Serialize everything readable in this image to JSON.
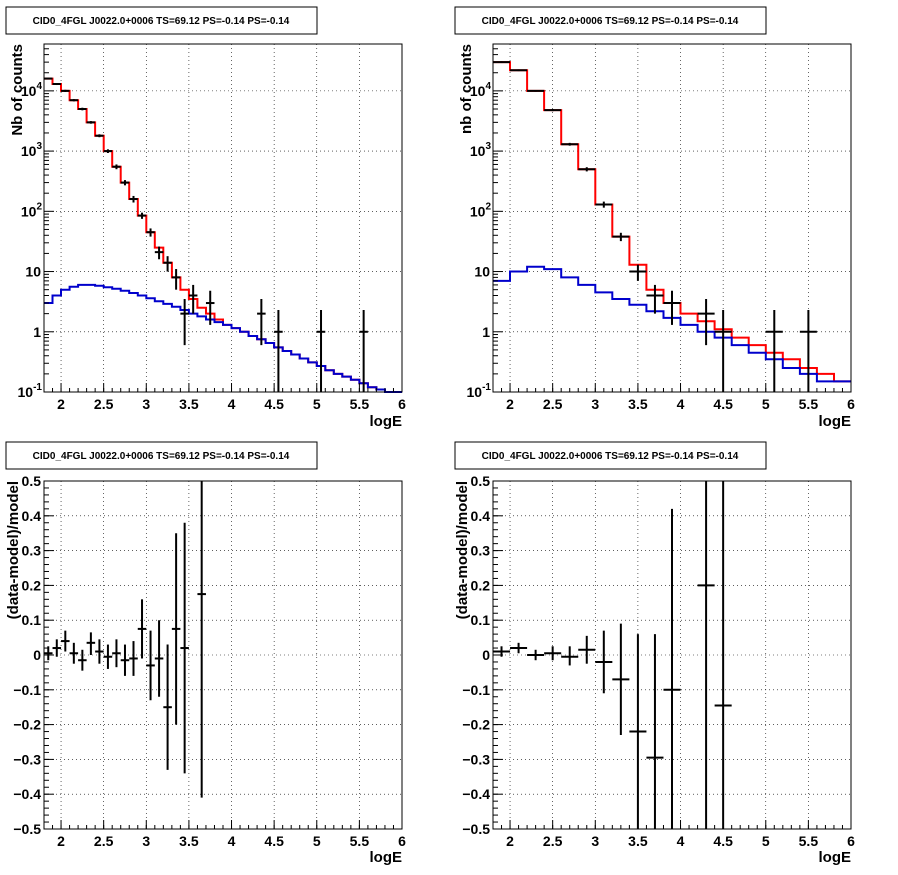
{
  "panels": [
    {
      "title": "CID0_4FGL J0022.0+0006 TS=69.12 PS=-0.14 PS=-0.14",
      "xlabel": "logE",
      "ylabel": "Nb of counts"
    },
    {
      "title": "CID0_4FGL J0022.0+0006 TS=69.12 PS=-0.14 PS=-0.14",
      "xlabel": "logE",
      "ylabel": "nb of counts"
    },
    {
      "title": "CID0_4FGL J0022.0+0006 TS=69.12 PS=-0.14 PS=-0.14",
      "xlabel": "logE",
      "ylabel": "(data-model)/model"
    },
    {
      "title": "CID0_4FGL J0022.0+0006 TS=69.12 PS=-0.14 PS=-0.14",
      "xlabel": "logE",
      "ylabel": "(data-model)/model"
    }
  ],
  "colors": {
    "total_model": "#ff0000",
    "source_model": "#0000cc",
    "data": "#000000",
    "grid": "#000000"
  },
  "chart_data": [
    {
      "type": "line",
      "title": "CID0_4FGL J0022.0+0006 TS=69.12 PS=-0.14 PS=-0.14",
      "xlabel": "logE",
      "ylabel": "Nb of counts",
      "xlim": [
        1.8,
        6.0
      ],
      "ylim": [
        0.1,
        60000
      ],
      "yscale": "log",
      "xticks": [
        2,
        2.5,
        3,
        3.5,
        4,
        4.5,
        5,
        5.5,
        6
      ],
      "xtick_labels": [
        "2",
        "2.5",
        "3",
        "3.5",
        "4",
        "4.5",
        "5",
        "5.5",
        "6"
      ],
      "yticks": [
        0.1,
        1,
        10,
        100,
        1000,
        10000
      ],
      "ytick_labels": [
        "10^-1",
        "1",
        "10",
        "10^2",
        "10^3",
        "10^4"
      ],
      "grid": true,
      "bin_edges": [
        1.8,
        1.9,
        2.0,
        2.1,
        2.2,
        2.3,
        2.4,
        2.5,
        2.6,
        2.7,
        2.8,
        2.9,
        3.0,
        3.1,
        3.2,
        3.3,
        3.4,
        3.5,
        3.6,
        3.7,
        3.8,
        3.9,
        4.0,
        4.1,
        4.2,
        4.3,
        4.4,
        4.5,
        4.6,
        4.7,
        4.8,
        4.9,
        5.0,
        5.1,
        5.2,
        5.3,
        5.4,
        5.5,
        5.6,
        5.7,
        5.8,
        5.9,
        6.0
      ],
      "series": [
        {
          "style": "step",
          "color": "#ff0000",
          "values": [
            16000,
            13000,
            10000,
            7000,
            5000,
            3000,
            1800,
            1000,
            550,
            300,
            160,
            85,
            45,
            25,
            14,
            8,
            5,
            3.5,
            2.5,
            2,
            1.6,
            1.3,
            1.15,
            1.0,
            0.85,
            0.75,
            0.65,
            0.55,
            0.48,
            0.42,
            0.36,
            0.31,
            0.27,
            0.23,
            0.2,
            0.18,
            0.16,
            0.14,
            0.12,
            0.11,
            0.1,
            0.1
          ]
        },
        {
          "style": "step",
          "color": "#0000cc",
          "values": [
            3.0,
            4.0,
            5.0,
            5.6,
            6.0,
            6.0,
            5.8,
            5.5,
            5.2,
            4.8,
            4.4,
            4.0,
            3.6,
            3.2,
            2.9,
            2.6,
            2.3,
            2.0,
            1.8,
            1.6,
            1.45,
            1.3,
            1.15,
            1.0,
            0.85,
            0.75,
            0.65,
            0.55,
            0.48,
            0.42,
            0.36,
            0.31,
            0.27,
            0.23,
            0.2,
            0.18,
            0.16,
            0.14,
            0.12,
            0.11,
            0.1,
            0.1
          ]
        },
        {
          "style": "errorbar",
          "color": "#000000",
          "points": [
            {
              "x": 1.85,
              "y": 16000,
              "xerr": 0.05,
              "ylo": 15500,
              "yhi": 16500
            },
            {
              "x": 1.95,
              "y": 13000,
              "xerr": 0.05,
              "ylo": 12500,
              "yhi": 13500
            },
            {
              "x": 2.05,
              "y": 10000,
              "xerr": 0.05,
              "ylo": 9600,
              "yhi": 10400
            },
            {
              "x": 2.15,
              "y": 7000,
              "xerr": 0.05,
              "ylo": 6700,
              "yhi": 7300
            },
            {
              "x": 2.25,
              "y": 5000,
              "xerr": 0.05,
              "ylo": 4750,
              "yhi": 5250
            },
            {
              "x": 2.35,
              "y": 3000,
              "xerr": 0.05,
              "ylo": 2850,
              "yhi": 3150
            },
            {
              "x": 2.45,
              "y": 1800,
              "xerr": 0.05,
              "ylo": 1700,
              "yhi": 1900
            },
            {
              "x": 2.55,
              "y": 1000,
              "xerr": 0.05,
              "ylo": 930,
              "yhi": 1070
            },
            {
              "x": 2.65,
              "y": 550,
              "xerr": 0.05,
              "ylo": 500,
              "yhi": 600
            },
            {
              "x": 2.75,
              "y": 300,
              "xerr": 0.05,
              "ylo": 270,
              "yhi": 330
            },
            {
              "x": 2.85,
              "y": 160,
              "xerr": 0.05,
              "ylo": 140,
              "yhi": 180
            },
            {
              "x": 2.95,
              "y": 85,
              "xerr": 0.05,
              "ylo": 75,
              "yhi": 95
            },
            {
              "x": 3.05,
              "y": 45,
              "xerr": 0.05,
              "ylo": 38,
              "yhi": 52
            },
            {
              "x": 3.15,
              "y": 21,
              "xerr": 0.05,
              "ylo": 16,
              "yhi": 26
            },
            {
              "x": 3.25,
              "y": 14,
              "xerr": 0.05,
              "ylo": 10,
              "yhi": 18
            },
            {
              "x": 3.35,
              "y": 8,
              "xerr": 0.05,
              "ylo": 5,
              "yhi": 11
            },
            {
              "x": 3.45,
              "y": 2,
              "xerr": 0.05,
              "ylo": 0.6,
              "yhi": 3.5
            },
            {
              "x": 3.55,
              "y": 4,
              "xerr": 0.05,
              "ylo": 2,
              "yhi": 6
            },
            {
              "x": 3.75,
              "y": 3,
              "xerr": 0.05,
              "ylo": 1.3,
              "yhi": 4.8
            },
            {
              "x": 4.35,
              "y": 2,
              "xerr": 0.05,
              "ylo": 0.6,
              "yhi": 3.5
            },
            {
              "x": 4.55,
              "y": 1,
              "xerr": 0.05,
              "ylo": 0.1,
              "yhi": 2.3
            },
            {
              "x": 5.05,
              "y": 1,
              "xerr": 0.05,
              "ylo": 0.1,
              "yhi": 2.3
            },
            {
              "x": 5.55,
              "y": 1,
              "xerr": 0.05,
              "ylo": 0.1,
              "yhi": 2.3
            }
          ]
        }
      ]
    },
    {
      "type": "line",
      "title": "CID0_4FGL J0022.0+0006 TS=69.12 PS=-0.14 PS=-0.14",
      "xlabel": "logE",
      "ylabel": "nb of counts",
      "xlim": [
        1.8,
        6.0
      ],
      "ylim": [
        0.1,
        60000
      ],
      "yscale": "log",
      "xticks": [
        2,
        2.5,
        3,
        3.5,
        4,
        4.5,
        5,
        5.5,
        6
      ],
      "xtick_labels": [
        "2",
        "2.5",
        "3",
        "3.5",
        "4",
        "4.5",
        "5",
        "5.5",
        "6"
      ],
      "yticks": [
        0.1,
        1,
        10,
        100,
        1000,
        10000
      ],
      "ytick_labels": [
        "10^-1",
        "1",
        "10",
        "10^2",
        "10^3",
        "10^4"
      ],
      "grid": true,
      "bin_edges": [
        1.8,
        2.0,
        2.2,
        2.4,
        2.6,
        2.8,
        3.0,
        3.2,
        3.4,
        3.6,
        3.8,
        4.0,
        4.2,
        4.4,
        4.6,
        4.8,
        5.0,
        5.2,
        5.4,
        5.6,
        5.8,
        6.0
      ],
      "series": [
        {
          "style": "step",
          "color": "#ff0000",
          "values": [
            30000,
            22000,
            10000,
            4800,
            1300,
            500,
            130,
            38,
            13,
            5,
            3,
            2,
            1.5,
            1.1,
            0.8,
            0.6,
            0.45,
            0.35,
            0.25,
            0.2,
            0.15
          ]
        },
        {
          "style": "step",
          "color": "#0000cc",
          "values": [
            7,
            10,
            12,
            11,
            8,
            6,
            4.5,
            3.5,
            2.8,
            2.2,
            1.7,
            1.3,
            1.0,
            0.8,
            0.6,
            0.45,
            0.35,
            0.25,
            0.2,
            0.15,
            0.15
          ]
        },
        {
          "style": "errorbar",
          "color": "#000000",
          "points": [
            {
              "x": 1.9,
              "y": 30000,
              "xerr": 0.1,
              "ylo": 29000,
              "yhi": 31000
            },
            {
              "x": 2.1,
              "y": 22000,
              "xerr": 0.1,
              "ylo": 21300,
              "yhi": 22700
            },
            {
              "x": 2.3,
              "y": 10000,
              "xerr": 0.1,
              "ylo": 9700,
              "yhi": 10300
            },
            {
              "x": 2.5,
              "y": 4800,
              "xerr": 0.1,
              "ylo": 4600,
              "yhi": 5000
            },
            {
              "x": 2.7,
              "y": 1300,
              "xerr": 0.1,
              "ylo": 1230,
              "yhi": 1370
            },
            {
              "x": 2.9,
              "y": 500,
              "xerr": 0.1,
              "ylo": 460,
              "yhi": 540
            },
            {
              "x": 3.1,
              "y": 130,
              "xerr": 0.1,
              "ylo": 115,
              "yhi": 145
            },
            {
              "x": 3.3,
              "y": 38,
              "xerr": 0.1,
              "ylo": 32,
              "yhi": 44
            },
            {
              "x": 3.5,
              "y": 10,
              "xerr": 0.1,
              "ylo": 7,
              "yhi": 13
            },
            {
              "x": 3.7,
              "y": 4,
              "xerr": 0.1,
              "ylo": 2,
              "yhi": 6
            },
            {
              "x": 3.9,
              "y": 3,
              "xerr": 0.1,
              "ylo": 1.3,
              "yhi": 4.8
            },
            {
              "x": 4.3,
              "y": 2,
              "xerr": 0.1,
              "ylo": 0.6,
              "yhi": 3.5
            },
            {
              "x": 4.5,
              "y": 1,
              "xerr": 0.1,
              "ylo": 0.1,
              "yhi": 2.3
            },
            {
              "x": 5.1,
              "y": 1,
              "xerr": 0.1,
              "ylo": 0.1,
              "yhi": 2.3
            },
            {
              "x": 5.5,
              "y": 1,
              "xerr": 0.1,
              "ylo": 0.1,
              "yhi": 2.3
            }
          ]
        }
      ]
    },
    {
      "type": "scatter",
      "title": "CID0_4FGL J0022.0+0006 TS=69.12 PS=-0.14 PS=-0.14",
      "xlabel": "logE",
      "ylabel": "(data-model)/model",
      "xlim": [
        1.8,
        6.0
      ],
      "ylim": [
        -0.5,
        0.5
      ],
      "xticks": [
        2,
        2.5,
        3,
        3.5,
        4,
        4.5,
        5,
        5.5,
        6
      ],
      "xtick_labels": [
        "2",
        "2.5",
        "3",
        "3.5",
        "4",
        "4.5",
        "5",
        "5.5",
        "6"
      ],
      "yticks": [
        -0.5,
        -0.4,
        -0.3,
        -0.2,
        -0.1,
        0,
        0.1,
        0.2,
        0.3,
        0.4,
        0.5
      ],
      "ytick_labels": [
        "−0.5",
        "−0.4",
        "−0.3",
        "−0.2",
        "−0.1",
        "0",
        "0.1",
        "0.2",
        "0.3",
        "0.4",
        "0.5"
      ],
      "grid": true,
      "series": [
        {
          "style": "errorbar",
          "color": "#000000",
          "points": [
            {
              "x": 1.85,
              "y": 0.005,
              "xerr": 0.05,
              "ylo": -0.015,
              "yhi": 0.025
            },
            {
              "x": 1.95,
              "y": 0.02,
              "xerr": 0.05,
              "ylo": -0.005,
              "yhi": 0.045
            },
            {
              "x": 2.05,
              "y": 0.04,
              "xerr": 0.05,
              "ylo": 0.01,
              "yhi": 0.07
            },
            {
              "x": 2.15,
              "y": 0.005,
              "xerr": 0.05,
              "ylo": -0.025,
              "yhi": 0.035
            },
            {
              "x": 2.25,
              "y": -0.015,
              "xerr": 0.05,
              "ylo": -0.045,
              "yhi": 0.015
            },
            {
              "x": 2.35,
              "y": 0.035,
              "xerr": 0.05,
              "ylo": 0.0,
              "yhi": 0.065
            },
            {
              "x": 2.45,
              "y": 0.01,
              "xerr": 0.05,
              "ylo": -0.025,
              "yhi": 0.045
            },
            {
              "x": 2.55,
              "y": -0.005,
              "xerr": 0.05,
              "ylo": -0.04,
              "yhi": 0.03
            },
            {
              "x": 2.65,
              "y": 0.005,
              "xerr": 0.05,
              "ylo": -0.035,
              "yhi": 0.045
            },
            {
              "x": 2.75,
              "y": -0.015,
              "xerr": 0.05,
              "ylo": -0.06,
              "yhi": 0.03
            },
            {
              "x": 2.85,
              "y": -0.01,
              "xerr": 0.05,
              "ylo": -0.06,
              "yhi": 0.04
            },
            {
              "x": 2.95,
              "y": 0.075,
              "xerr": 0.05,
              "ylo": -0.01,
              "yhi": 0.16
            },
            {
              "x": 3.05,
              "y": -0.03,
              "xerr": 0.05,
              "ylo": -0.13,
              "yhi": 0.07
            },
            {
              "x": 3.15,
              "y": -0.01,
              "xerr": 0.05,
              "ylo": -0.12,
              "yhi": 0.1
            },
            {
              "x": 3.25,
              "y": -0.15,
              "xerr": 0.05,
              "ylo": -0.33,
              "yhi": 0.03
            },
            {
              "x": 3.35,
              "y": 0.075,
              "xerr": 0.05,
              "ylo": -0.2,
              "yhi": 0.35
            },
            {
              "x": 3.45,
              "y": 0.02,
              "xerr": 0.05,
              "ylo": -0.34,
              "yhi": 0.38
            },
            {
              "x": 3.65,
              "y": 0.175,
              "xerr": 0.05,
              "ylo": -0.41,
              "yhi": 0.5
            }
          ]
        }
      ]
    },
    {
      "type": "scatter",
      "title": "CID0_4FGL J0022.0+0006 TS=69.12 PS=-0.14 PS=-0.14",
      "xlabel": "logE",
      "ylabel": "(data-model)/model",
      "xlim": [
        1.8,
        6.0
      ],
      "ylim": [
        -0.5,
        0.5
      ],
      "xticks": [
        2,
        2.5,
        3,
        3.5,
        4,
        4.5,
        5,
        5.5,
        6
      ],
      "xtick_labels": [
        "2",
        "2.5",
        "3",
        "3.5",
        "4",
        "4.5",
        "5",
        "5.5",
        "6"
      ],
      "yticks": [
        -0.5,
        -0.4,
        -0.3,
        -0.2,
        -0.1,
        0,
        0.1,
        0.2,
        0.3,
        0.4,
        0.5
      ],
      "ytick_labels": [
        "−0.5",
        "−0.4",
        "−0.3",
        "−0.2",
        "−0.1",
        "0",
        "0.1",
        "0.2",
        "0.3",
        "0.4",
        "0.5"
      ],
      "grid": true,
      "series": [
        {
          "style": "errorbar",
          "color": "#000000",
          "points": [
            {
              "x": 1.9,
              "y": 0.01,
              "xerr": 0.1,
              "ylo": -0.005,
              "yhi": 0.025
            },
            {
              "x": 2.1,
              "y": 0.02,
              "xerr": 0.1,
              "ylo": 0.005,
              "yhi": 0.035
            },
            {
              "x": 2.3,
              "y": 0.0,
              "xerr": 0.1,
              "ylo": -0.015,
              "yhi": 0.015
            },
            {
              "x": 2.5,
              "y": 0.005,
              "xerr": 0.1,
              "ylo": -0.015,
              "yhi": 0.025
            },
            {
              "x": 2.7,
              "y": -0.005,
              "xerr": 0.1,
              "ylo": -0.03,
              "yhi": 0.025
            },
            {
              "x": 2.9,
              "y": 0.015,
              "xerr": 0.1,
              "ylo": -0.025,
              "yhi": 0.055
            },
            {
              "x": 3.1,
              "y": -0.02,
              "xerr": 0.1,
              "ylo": -0.11,
              "yhi": 0.07
            },
            {
              "x": 3.3,
              "y": -0.07,
              "xerr": 0.1,
              "ylo": -0.23,
              "yhi": 0.09
            },
            {
              "x": 3.5,
              "y": -0.22,
              "xerr": 0.1,
              "ylo": -0.5,
              "yhi": 0.06
            },
            {
              "x": 3.7,
              "y": -0.295,
              "xerr": 0.1,
              "ylo": -0.5,
              "yhi": 0.06
            },
            {
              "x": 3.9,
              "y": -0.1,
              "xerr": 0.1,
              "ylo": -0.5,
              "yhi": 0.42
            },
            {
              "x": 4.3,
              "y": 0.2,
              "xerr": 0.1,
              "ylo": -0.5,
              "yhi": 0.5
            },
            {
              "x": 4.5,
              "y": -0.145,
              "xerr": 0.1,
              "ylo": -0.5,
              "yhi": 0.5
            }
          ]
        }
      ]
    }
  ]
}
